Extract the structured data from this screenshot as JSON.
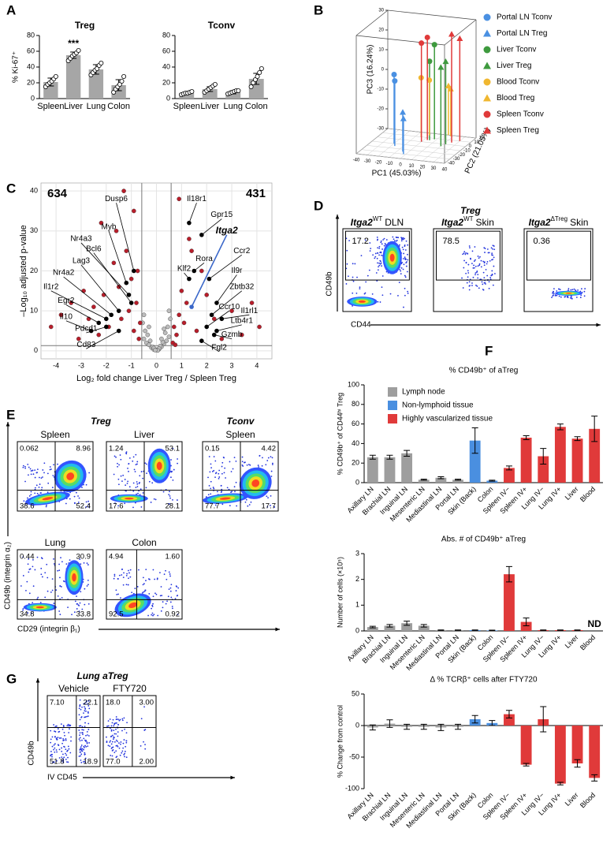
{
  "chart_data": [
    {
      "panel": "A",
      "type": "bar",
      "title": "Treg",
      "ylabel": "% Ki-67⁺",
      "categories": [
        "Spleen",
        "Liver",
        "Lung",
        "Colon"
      ],
      "values": [
        21,
        55,
        37,
        17
      ],
      "errors": [
        5,
        4,
        6,
        7
      ],
      "points": [
        [
          15,
          18,
          20,
          22,
          25,
          28
        ],
        [
          48,
          51,
          54,
          56,
          58,
          61
        ],
        [
          30,
          33,
          36,
          38,
          42,
          45
        ],
        [
          8,
          12,
          15,
          18,
          22,
          28
        ]
      ],
      "value_annotations": [
        null,
        "***",
        null,
        null
      ],
      "color": "#a6a6a6",
      "ylim": [
        0,
        80
      ],
      "yticks": [
        0,
        20,
        40,
        60,
        80
      ]
    },
    {
      "type": "bar",
      "title": "Tconv",
      "categories": [
        "Spleen",
        "Liver",
        "Lung",
        "Colon"
      ],
      "values": [
        7,
        12,
        8,
        25
      ],
      "errors": [
        1,
        3,
        2,
        7
      ],
      "points": [
        [
          5,
          6,
          7,
          7,
          8,
          9
        ],
        [
          8,
          10,
          12,
          14,
          16,
          18
        ],
        [
          6,
          7,
          8,
          9,
          10,
          10
        ],
        [
          15,
          20,
          24,
          28,
          33,
          38
        ]
      ],
      "color": "#a6a6a6",
      "ylim": [
        0,
        80
      ],
      "yticks": [
        0,
        20,
        40,
        60,
        80
      ]
    },
    {
      "panel": "B",
      "type": "scatter3d",
      "xlabel": "PC1 (45.03%)",
      "ylabel": "PC2 (21.05%)",
      "zlabel": "PC3 (16.24%)",
      "xlim": [
        -40,
        40
      ],
      "xticks": [
        -40,
        -30,
        -20,
        -10,
        0,
        10,
        20,
        30,
        40
      ],
      "ylim": [
        -40,
        20
      ],
      "yticks": [
        -40,
        -30,
        -20,
        -10,
        0,
        10,
        20
      ],
      "zlim": [
        -30,
        30
      ],
      "zticks": [
        -30,
        -20,
        -10,
        0,
        10,
        20,
        30
      ],
      "series": [
        {
          "name": "Portal LN Tconv",
          "color": "#4a90e2",
          "marker": "circle",
          "x": [
            -20,
            -17
          ],
          "y": [
            -10,
            -15
          ],
          "values": [
            5,
            3
          ]
        },
        {
          "name": "Portal LN Treg",
          "color": "#4a90e2",
          "marker": "triangle",
          "x": [
            -5,
            -2
          ],
          "y": [
            -25,
            -30
          ],
          "values": [
            -10,
            -12
          ]
        },
        {
          "name": "Liver Tconv",
          "color": "#3e9a3e",
          "marker": "circle",
          "x": [
            5,
            8
          ],
          "y": [
            5,
            8
          ],
          "values": [
            10,
            18
          ]
        },
        {
          "name": "Liver Treg",
          "color": "#3e9a3e",
          "marker": "triangle",
          "x": [
            20,
            22
          ],
          "y": [
            -5,
            0
          ],
          "values": [
            10,
            12
          ]
        },
        {
          "name": "Blood Tconv",
          "color": "#f0b730",
          "marker": "circle",
          "x": [
            -5,
            0
          ],
          "y": [
            10,
            15
          ],
          "values": [
            0,
            -2
          ]
        },
        {
          "name": "Blood Treg",
          "color": "#f0b730",
          "marker": "triangle",
          "x": [
            15,
            18
          ],
          "y": [
            20,
            18
          ],
          "values": [
            -5,
            -6
          ]
        },
        {
          "name": "Spleen Tconv",
          "color": "#e03a3a",
          "marker": "circle",
          "x": [
            0,
            3
          ],
          "y": [
            0,
            5
          ],
          "values": [
            20,
            22
          ]
        },
        {
          "name": "Spleen Treg",
          "color": "#e03a3a",
          "marker": "triangle",
          "x": [
            25,
            30
          ],
          "y": [
            5,
            10
          ],
          "values": [
            25,
            22
          ]
        }
      ]
    },
    {
      "panel": "C",
      "type": "scatter",
      "xlabel": "Log₂ fold change Liver Treg / Spleen Treg",
      "ylabel": "–Log₁₀ adjusted p-value",
      "annotations": [
        "634",
        "431"
      ],
      "xlim": [
        -4.6,
        4.6
      ],
      "xticks": [
        -4,
        -3,
        -2,
        -1,
        0,
        1,
        2,
        3,
        4
      ],
      "ylim": [
        -2,
        42
      ],
      "yticks": [
        0,
        10,
        20,
        30,
        40
      ],
      "grid": true,
      "vlines": [
        -0.585,
        0.585
      ],
      "hline": 1.3,
      "series": [
        {
          "color": "#bdbdbd",
          "x": [
            -0.5,
            -0.4,
            -0.3,
            -0.2,
            -0.1,
            0,
            0.1,
            0.2,
            0.3,
            0.4,
            0.5,
            -0.45,
            -0.35,
            -0.25,
            -0.15,
            0.15,
            0.25,
            0.35,
            0.45,
            -0.55,
            0.55,
            -0.3,
            0.3,
            -0.1,
            0.1,
            -0.5,
            0.5,
            0.05,
            -0.05,
            0.2
          ],
          "values": [
            3,
            2,
            1.5,
            0.8,
            0.3,
            0.2,
            0.4,
            1,
            1.8,
            2.5,
            3.5,
            5,
            4,
            2.5,
            1,
            1.2,
            2.2,
            4.5,
            6,
            7,
            8,
            6,
            5.5,
            0.7,
            0.6,
            9,
            10,
            0.1,
            0.2,
            3
          ]
        },
        {
          "color": "#b81d2a",
          "x": [
            -4.2,
            -3.8,
            -3.4,
            -3.1,
            -2.9,
            -2.7,
            -2.5,
            -2.3,
            -2.1,
            -1.9,
            -1.7,
            -1.5,
            -1.4,
            -1.2,
            -1.1,
            -1,
            -0.9,
            -0.8,
            -0.7,
            -0.65,
            -2.2,
            -1.6,
            -1.3,
            -0.9,
            -0.75,
            0.65,
            0.7,
            0.8,
            0.9,
            1,
            1.1,
            1.2,
            1.4,
            1.6,
            1.8,
            2,
            2.3,
            2.6,
            3,
            3.4,
            3.8,
            4.1,
            0.75,
            1.3,
            0.9
          ],
          "values": [
            6,
            9,
            12,
            3,
            15,
            8,
            11,
            4,
            14,
            6,
            22,
            16,
            8,
            25,
            10,
            18,
            5,
            12,
            3,
            7,
            32,
            30,
            40,
            35,
            20,
            2,
            6,
            4,
            9,
            15,
            7,
            12,
            25,
            5,
            20,
            14,
            8,
            3,
            10,
            4,
            12,
            6,
            1.5,
            28,
            38
          ]
        }
      ],
      "genes": {
        "labels": [
          "Dusp6",
          "Myb",
          "Nr4a3",
          "Bcl6",
          "Lag3",
          "Nr4a2",
          "Il1r2",
          "Egr2",
          "Il10",
          "Pdcd1",
          "Cd83",
          "Il18r1",
          "Gpr15",
          "Itga2",
          "Ccr2",
          "Rora",
          "Klf2",
          "Il9r",
          "Zbtb32",
          "Ccr10",
          "Il1rl1",
          "Ltb4r1",
          "Gzmb",
          "Fgl2"
        ],
        "x": [
          -0.9,
          -1.2,
          -1.1,
          -1.0,
          -1.5,
          -1.8,
          -2.0,
          -2.3,
          -2.6,
          -2.0,
          -1.5,
          1.3,
          1.8,
          1.4,
          2.1,
          1.5,
          1.3,
          2.4,
          2.2,
          2.0,
          2.6,
          2.4,
          2.3,
          1.8
        ],
        "values": [
          20,
          17,
          14,
          12,
          10,
          9,
          8,
          7,
          5,
          6,
          5,
          32,
          29,
          11,
          18,
          20,
          18,
          12,
          9,
          6,
          8,
          5,
          4,
          2.5
        ],
        "colors": [
          "#000",
          "#000",
          "#000",
          "#000",
          "#000",
          "#000",
          "#000",
          "#000",
          "#000",
          "#000",
          "#000",
          "#000",
          "#000",
          "#3a67c9",
          "#000",
          "#000",
          "#000",
          "#000",
          "#000",
          "#000",
          "#000",
          "#000",
          "#000",
          "#000"
        ]
      }
    },
    {
      "panel": "D",
      "type": "flow",
      "header": "Treg",
      "xlabel": "CD44",
      "ylabel": "CD49b",
      "plots": [
        {
          "title": {
            "gene": "Itga2",
            "sup": "WT",
            "tissue": "DLN"
          },
          "gate": "17.2"
        },
        {
          "title": {
            "gene": "Itga2",
            "sup": "WT",
            "tissue": "Skin"
          },
          "gate": "78.5"
        },
        {
          "title": {
            "gene": "Itga2",
            "sup": "ΔTreg",
            "tissue": "Skin"
          },
          "gate": "0.36"
        }
      ]
    },
    {
      "panel": "E",
      "type": "flow",
      "headers": [
        "Treg",
        "Tconv"
      ],
      "xlabel": "CD29 (integrin β₁)",
      "ylabel": "CD49b (integrin α₂)",
      "plots": [
        {
          "title": "Spleen",
          "quadrants": [
            "0.062",
            "8.96",
            "38.6",
            "52.4"
          ]
        },
        {
          "title": "Liver",
          "quadrants": [
            "1.24",
            "53.1",
            "17.6",
            "28.1"
          ]
        },
        {
          "title": "Spleen",
          "quadrants": [
            "0.15",
            "4.42",
            "77.7",
            "17.7"
          ]
        },
        {
          "title": "Lung",
          "quadrants": [
            "0.44",
            "30.9",
            "34.8",
            "33.8"
          ]
        },
        {
          "title": "Colon",
          "quadrants": [
            "4.94",
            "1.60",
            "92.5",
            "0.92"
          ]
        }
      ]
    },
    {
      "panel": "F",
      "type": "bar",
      "title": "% CD49b⁺ of aTreg",
      "ylabel": "% CD49b⁺ of CD44ʰⁱ Treg",
      "categories": [
        "Axillary LN",
        "Brachial LN",
        "Inguinal LN",
        "Mesenteric LN",
        "Mediastinal LN",
        "Portal LN",
        "Skin (Back)",
        "Colon",
        "Spleen IV−",
        "Spleen IV+",
        "Lung IV−",
        "Lung IV+",
        "Liver",
        "Blood"
      ],
      "values": [
        26,
        26,
        30,
        3,
        5,
        3,
        43,
        2,
        15,
        46,
        27,
        57,
        45,
        55
      ],
      "errors": [
        2,
        2,
        3,
        0.5,
        1,
        0.5,
        13,
        0.5,
        2,
        2,
        8,
        3,
        2,
        13
      ],
      "colors": [
        "#9e9e9e",
        "#9e9e9e",
        "#9e9e9e",
        "#9e9e9e",
        "#9e9e9e",
        "#9e9e9e",
        "#4a8fe0",
        "#4a8fe0",
        "#e03a3a",
        "#e03a3a",
        "#e03a3a",
        "#e03a3a",
        "#e03a3a",
        "#e03a3a"
      ],
      "legend": [
        {
          "name": "Lymph node",
          "color": "#9e9e9e"
        },
        {
          "name": "Non-lymphoid tissue",
          "color": "#4a8fe0"
        },
        {
          "name": "Highly vascularized tissue",
          "color": "#e03a3a"
        }
      ],
      "ylim": [
        0,
        100
      ],
      "yticks": [
        0,
        20,
        40,
        60,
        80,
        100
      ]
    },
    {
      "type": "bar",
      "title": "Abs. # of CD49b⁺ aTreg",
      "ylabel": "Number of cells (×10⁵)",
      "categories": [
        "Axillary LN",
        "Brachial LN",
        "Inguinal LN",
        "Mesenteric LN",
        "Mediastinal LN",
        "Portal LN",
        "Skin (Back)",
        "Colon",
        "Spleen IV−",
        "Spleen IV+",
        "Lung IV−",
        "Lung IV+",
        "Liver",
        "Blood"
      ],
      "values": [
        0.15,
        0.2,
        0.3,
        0.2,
        0.03,
        0.03,
        0.03,
        0.02,
        2.2,
        0.35,
        0.03,
        0.03,
        0.03,
        null
      ],
      "errors": [
        0.03,
        0.05,
        0.08,
        0.05,
        0.01,
        0.01,
        0.01,
        0.01,
        0.3,
        0.15,
        0.01,
        0.01,
        0.01,
        null
      ],
      "value_annotations": [
        null,
        null,
        null,
        null,
        null,
        null,
        null,
        null,
        null,
        null,
        null,
        null,
        null,
        "ND"
      ],
      "colors": [
        "#9e9e9e",
        "#9e9e9e",
        "#9e9e9e",
        "#9e9e9e",
        "#9e9e9e",
        "#9e9e9e",
        "#4a8fe0",
        "#4a8fe0",
        "#e03a3a",
        "#e03a3a",
        "#e03a3a",
        "#e03a3a",
        "#e03a3a",
        "#e03a3a"
      ],
      "ylim": [
        0,
        3
      ],
      "yticks": [
        0,
        1,
        2,
        3
      ]
    },
    {
      "type": "bar",
      "title": "Δ % TCRβ⁺ cells after FTY720",
      "ylabel": "% Change from control",
      "categories": [
        "Axillary LN",
        "Brachial LN",
        "Inguinal LN",
        "Mesenteric LN",
        "Mediastinal LN",
        "Portal LN",
        "Skin (Back)",
        "Colon",
        "Spleen IV−",
        "Spleen IV+",
        "Lung IV−",
        "Lung IV+",
        "Liver",
        "Blood"
      ],
      "values": [
        -3,
        3,
        -2,
        -2,
        -3,
        -2,
        10,
        4,
        18,
        -62,
        10,
        -92,
        -60,
        -83
      ],
      "errors": [
        4,
        6,
        4,
        4,
        5,
        4,
        6,
        4,
        6,
        2,
        20,
        2,
        6,
        5
      ],
      "colors": [
        "#9e9e9e",
        "#9e9e9e",
        "#9e9e9e",
        "#9e9e9e",
        "#9e9e9e",
        "#9e9e9e",
        "#4a8fe0",
        "#4a8fe0",
        "#e03a3a",
        "#e03a3a",
        "#e03a3a",
        "#e03a3a",
        "#e03a3a",
        "#e03a3a"
      ],
      "ylim": [
        -100,
        50
      ],
      "yticks": [
        -100,
        -50,
        0,
        50
      ]
    },
    {
      "panel": "G",
      "type": "flow",
      "header": "Lung aTreg",
      "xlabel": "IV CD45",
      "ylabel": "CD49b",
      "plots": [
        {
          "title": "Vehicle",
          "quadrants": [
            "7.10",
            "22.1",
            "51.8",
            "18.9"
          ]
        },
        {
          "title": "FTY720",
          "quadrants": [
            "18.0",
            "3.00",
            "77.0",
            "2.00"
          ]
        }
      ]
    }
  ]
}
